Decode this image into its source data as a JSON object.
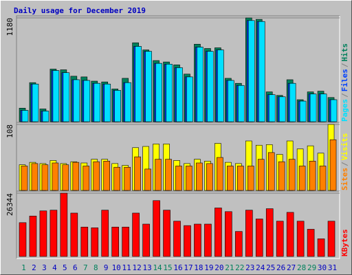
{
  "chart_data": {
    "type": "bar",
    "title": "Daily usage for December 2019",
    "categories": [
      "1",
      "2",
      "3",
      "4",
      "5",
      "6",
      "7",
      "8",
      "9",
      "10",
      "11",
      "12",
      "13",
      "14",
      "15",
      "16",
      "17",
      "18",
      "19",
      "20",
      "21",
      "22",
      "23",
      "24",
      "25",
      "26",
      "27",
      "28",
      "29",
      "30",
      "31"
    ],
    "weekend_days": [
      "1",
      "7",
      "8",
      "14",
      "15",
      "21",
      "22",
      "28",
      "29"
    ],
    "weekend_color": "#00805c",
    "separator": "/",
    "panels": [
      {
        "ylim": [
          0,
          1180
        ],
        "yticks": [
          1180
        ],
        "series": [
          {
            "name": "Hits",
            "color": "#00805c",
            "values": [
              154,
              444,
              145,
              598,
              590,
              517,
              509,
              461,
              452,
              372,
              493,
              897,
              816,
              695,
              679,
              646,
              541,
              881,
              832,
              840,
              493,
              436,
              1180,
              1163,
              339,
              299,
              477,
              250,
              339,
              347,
              275
            ]
          },
          {
            "name": "Files",
            "color": "#0040ff",
            "values": [
              129,
              428,
              121,
              582,
              557,
              477,
              469,
              436,
              428,
              356,
              444,
              856,
              800,
              663,
              654,
              614,
              509,
              848,
              800,
              816,
              469,
              412,
              1150,
              1139,
              307,
              283,
              436,
              234,
              315,
              315,
              250
            ]
          },
          {
            "name": "Pages",
            "color": "#00e0ff",
            "values": [
              129,
              428,
              121,
              582,
              557,
              477,
              469,
              436,
              428,
              356,
              444,
              856,
              800,
              663,
              654,
              614,
              509,
              848,
              800,
              816,
              469,
              412,
              1150,
              1139,
              307,
              283,
              436,
              234,
              315,
              315,
              250
            ]
          }
        ]
      },
      {
        "ylim": [
          0,
          108
        ],
        "yticks": [
          108
        ],
        "series": [
          {
            "name": "Visits",
            "color": "#ffff00",
            "values": [
              42,
              46,
              44,
              49,
              44,
              47,
              45,
              51,
              51,
              44,
              41,
              70,
              72,
              76,
              76,
              49,
              44,
              51,
              48,
              77,
              46,
              44,
              81,
              74,
              75,
              59,
              81,
              68,
              73,
              61,
              108
            ]
          },
          {
            "name": "Sites",
            "color": "#ff8000",
            "values": [
              40,
              44,
              42,
              45,
              42,
              46,
              40,
              47,
              48,
              38,
              38,
              55,
              35,
              51,
              51,
              40,
              40,
              45,
              44,
              54,
              40,
              40,
              40,
              51,
              62,
              47,
              51,
              40,
              48,
              40,
              83
            ]
          }
        ]
      },
      {
        "ylim": [
          0,
          26344
        ],
        "yticks": [
          26344
        ],
        "series": [
          {
            "name": "KBytes",
            "color": "#ff0000",
            "values": [
              14076,
              16830,
              18972,
              19278,
              26344,
              18054,
              12240,
              11934,
              19278,
              12240,
              12240,
              18054,
              13464,
              23256,
              19278,
              14688,
              12852,
              13464,
              13464,
              20196,
              18666,
              10404,
              19278,
              15606,
              19890,
              14688,
              18360,
              14688,
              11322,
              7344,
              14688
            ]
          }
        ]
      }
    ]
  }
}
